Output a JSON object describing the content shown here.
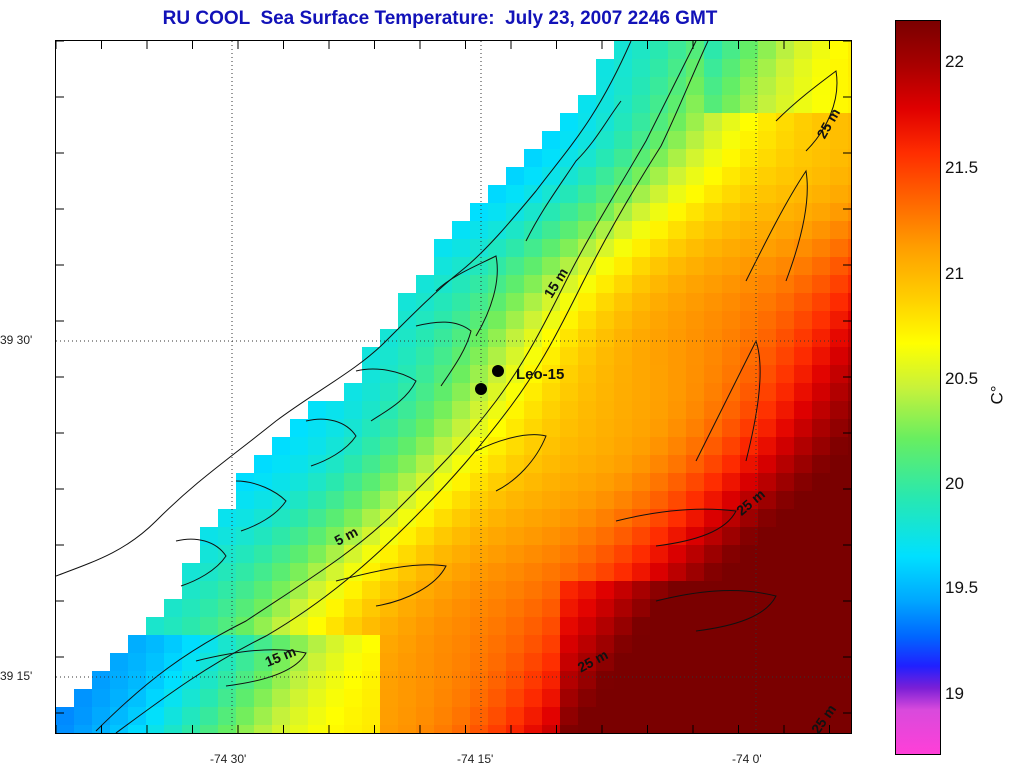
{
  "title": "RU COOL  Sea Surface Temperature:  July 23, 2007 2246 GMT",
  "map": {
    "lon_labels": [
      "-74 30'",
      "-74 15'",
      "-74 0'"
    ],
    "lat_labels": [
      "39 30'",
      "39 15'"
    ],
    "station_label": "Leo-15",
    "depth_labels": [
      "25 m",
      "15 m",
      "5 m",
      "15 m",
      "25 m",
      "25 m",
      "25 m"
    ]
  },
  "colorbar": {
    "ticks": [
      "22",
      "21.5",
      "21",
      "20.5",
      "20",
      "19.5",
      "19"
    ],
    "unit": "C°",
    "min": 18.7,
    "max": 22.2
  }
}
